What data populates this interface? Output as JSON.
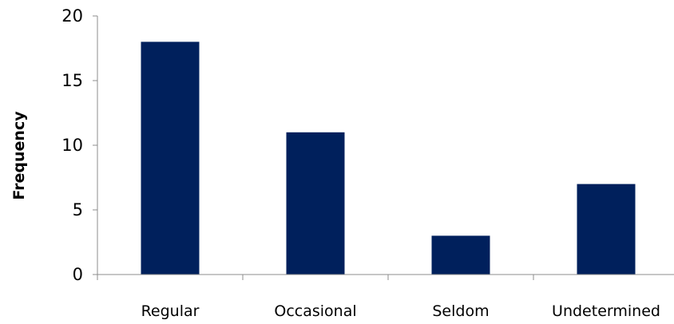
{
  "colors": {
    "bar": "#00205c",
    "axis": "#8c8c8c"
  },
  "chart_data": {
    "type": "bar",
    "title": "",
    "xlabel": "",
    "ylabel": "Frequency",
    "categories": [
      "Regular",
      "Occasional",
      "Seldom",
      "Undetermined"
    ],
    "values": [
      18,
      11,
      3,
      7
    ],
    "ylim": [
      0,
      20
    ],
    "yticks": [
      0,
      5,
      10,
      15,
      20
    ],
    "grid": false,
    "legend": "none"
  }
}
